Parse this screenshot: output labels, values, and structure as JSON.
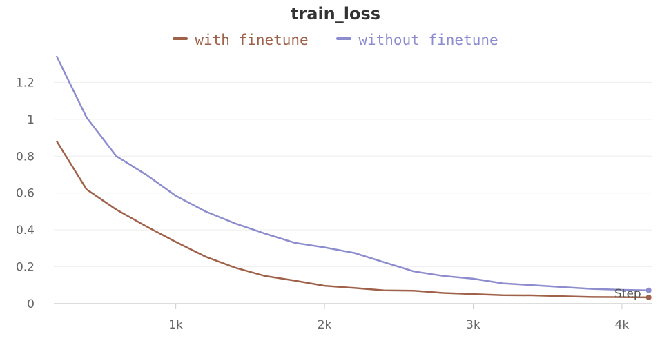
{
  "chart_data": {
    "type": "line",
    "title": "train_loss",
    "xlabel": "Step",
    "ylabel": "",
    "xlim": [
      180,
      4200
    ],
    "ylim": [
      0,
      1.34
    ],
    "x_ticks": [
      {
        "value": 1000,
        "label": "1k"
      },
      {
        "value": 2000,
        "label": "2k"
      },
      {
        "value": 3000,
        "label": "3k"
      },
      {
        "value": 4000,
        "label": "4k"
      }
    ],
    "y_ticks": [
      {
        "value": 0,
        "label": "0"
      },
      {
        "value": 0.2,
        "label": "0.2"
      },
      {
        "value": 0.4,
        "label": "0.4"
      },
      {
        "value": 0.6,
        "label": "0.6"
      },
      {
        "value": 0.8,
        "label": "0.8"
      },
      {
        "value": 1.0,
        "label": "1"
      },
      {
        "value": 1.2,
        "label": "1.2"
      }
    ],
    "grid": true,
    "legend_position": "top-center",
    "series": [
      {
        "name": "with finetune",
        "color": "#a0614a",
        "x": [
          200,
          400,
          600,
          800,
          1000,
          1200,
          1400,
          1600,
          1800,
          2000,
          2200,
          2400,
          2600,
          2800,
          3000,
          3200,
          3400,
          3600,
          3800,
          4000,
          4180
        ],
        "y": [
          0.88,
          0.62,
          0.51,
          0.42,
          0.335,
          0.255,
          0.195,
          0.15,
          0.125,
          0.097,
          0.085,
          0.072,
          0.07,
          0.058,
          0.052,
          0.046,
          0.045,
          0.04,
          0.036,
          0.035,
          0.034
        ]
      },
      {
        "name": "without finetune",
        "color": "#8c8ccf",
        "x": [
          200,
          400,
          600,
          800,
          1000,
          1200,
          1400,
          1600,
          1800,
          2000,
          2200,
          2400,
          2600,
          2800,
          3000,
          3200,
          3400,
          3600,
          3800,
          4000,
          4180
        ],
        "y": [
          1.34,
          1.01,
          0.8,
          0.7,
          0.585,
          0.5,
          0.435,
          0.38,
          0.33,
          0.305,
          0.275,
          0.225,
          0.175,
          0.15,
          0.135,
          0.11,
          0.1,
          0.09,
          0.08,
          0.075,
          0.072
        ]
      }
    ]
  }
}
